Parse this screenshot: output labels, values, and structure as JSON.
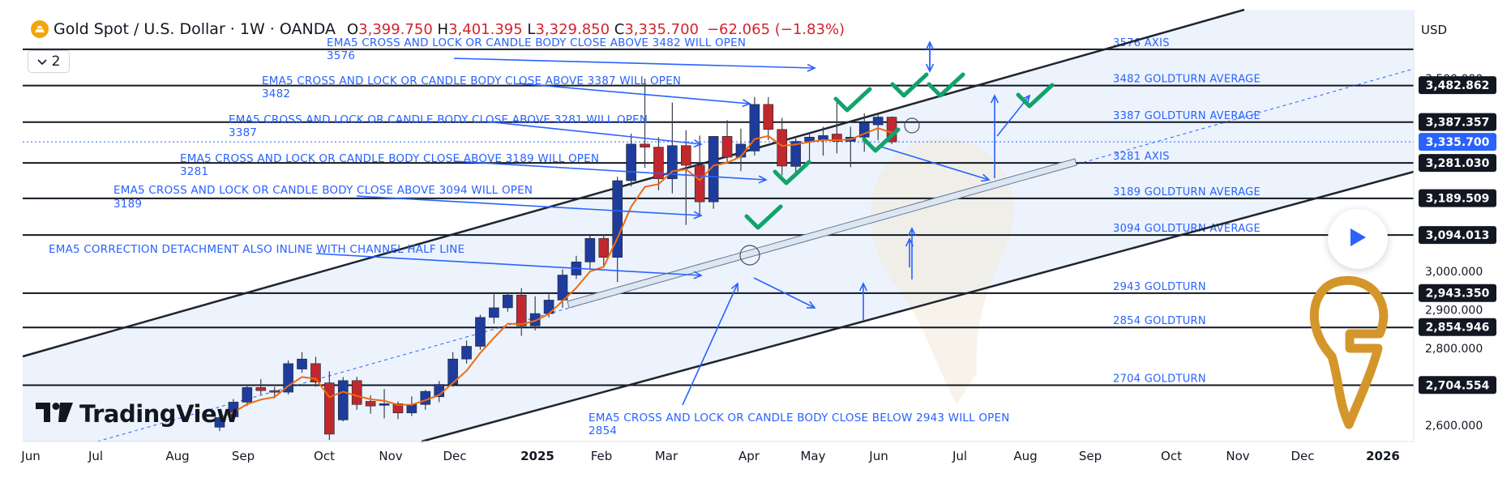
{
  "legend": {
    "symbol": "Gold Spot / U.S. Dollar · 1W · OANDA",
    "o_label": "O",
    "o_value": "3,399.750",
    "h_label": "H",
    "h_value": "3,401.395",
    "l_label": "L",
    "l_value": "3,329.850",
    "c_label": "C",
    "c_value": "3,335.700",
    "change": "−62.065 (−1.83%)"
  },
  "indicators_toggle": {
    "count": "2",
    "icon": "chevron-down-icon"
  },
  "currency": "USD",
  "brand": {
    "text": "TradingView",
    "icon": "tradingview-logo-icon"
  },
  "colors": {
    "up_candle": "#1f3c9c",
    "down_candle": "#c0282d",
    "ema": "#f06a10",
    "annotation_blue": "#2962ff",
    "checkmark": "#11a36b",
    "logo_gold": "#d4962b",
    "channel_fill": "#e9f1fb"
  },
  "chart_data": {
    "type": "candlestick",
    "title": "Gold Spot / U.S. Dollar · 1W · OANDA",
    "timeframe": "1W",
    "x_axis_labels": [
      "Jun",
      "Jul",
      "Aug",
      "Sep",
      "Oct",
      "Nov",
      "Dec",
      "2025",
      "Feb",
      "Mar",
      "Apr",
      "May",
      "Jun",
      "Jul",
      "Aug",
      "Sep",
      "Oct",
      "Nov",
      "Dec",
      "2026"
    ],
    "y_axis_ticks": [
      2600,
      2700,
      2800,
      2900,
      3000,
      3100,
      3200,
      3300,
      3400,
      3500
    ],
    "y_axis_tick_labels": [
      "2,600.000",
      "2,800.000",
      "2,900.000",
      "3,000.000",
      "3,500.000"
    ],
    "ylim": [
      2540,
      3660
    ],
    "price_labels": [
      {
        "value": 3482.862,
        "text": "3,482.862",
        "kind": "line"
      },
      {
        "value": 3387.357,
        "text": "3,387.357",
        "kind": "line"
      },
      {
        "value": 3335.7,
        "text": "3,335.700",
        "kind": "current"
      },
      {
        "value": 3281.03,
        "text": "3,281.030",
        "kind": "line"
      },
      {
        "value": 3189.509,
        "text": "3,189.509",
        "kind": "line"
      },
      {
        "value": 3094.013,
        "text": "3,094.013",
        "kind": "line"
      },
      {
        "value": 2943.35,
        "text": "2,943.350",
        "kind": "line"
      },
      {
        "value": 2854.946,
        "text": "2,854.946",
        "kind": "line"
      },
      {
        "value": 2704.554,
        "text": "2,704.554",
        "kind": "line"
      }
    ],
    "horizontal_levels": [
      {
        "value": 3576,
        "label": "3576 AXIS"
      },
      {
        "value": 3482,
        "label": "3482 GOLDTURN AVERAGE"
      },
      {
        "value": 3387,
        "label": "3387 GOLDTURN AVERAGE"
      },
      {
        "value": 3281,
        "label": "3281 AXIS"
      },
      {
        "value": 3189,
        "label": "3189 GOLDTURN AVERAGE"
      },
      {
        "value": 3094,
        "label": "3094 GOLDTURN AVERAGE"
      },
      {
        "value": 2943,
        "label": "2943 GOLDTURN"
      },
      {
        "value": 2854,
        "label": "2854 GOLDTURN"
      },
      {
        "value": 2704,
        "label": "2704 GOLDTURN"
      }
    ],
    "candles": [
      {
        "o": 2595,
        "h": 2625,
        "l": 2585,
        "c": 2620
      },
      {
        "o": 2622,
        "h": 2668,
        "l": 2612,
        "c": 2660
      },
      {
        "o": 2660,
        "h": 2704,
        "l": 2650,
        "c": 2698
      },
      {
        "o": 2698,
        "h": 2720,
        "l": 2680,
        "c": 2690
      },
      {
        "o": 2690,
        "h": 2700,
        "l": 2670,
        "c": 2686
      },
      {
        "o": 2686,
        "h": 2768,
        "l": 2680,
        "c": 2760
      },
      {
        "o": 2746,
        "h": 2790,
        "l": 2736,
        "c": 2772
      },
      {
        "o": 2760,
        "h": 2778,
        "l": 2700,
        "c": 2712
      },
      {
        "o": 2710,
        "h": 2740,
        "l": 2562,
        "c": 2577
      },
      {
        "o": 2614,
        "h": 2725,
        "l": 2610,
        "c": 2716
      },
      {
        "o": 2716,
        "h": 2726,
        "l": 2640,
        "c": 2654
      },
      {
        "o": 2662,
        "h": 2678,
        "l": 2630,
        "c": 2650
      },
      {
        "o": 2652,
        "h": 2694,
        "l": 2618,
        "c": 2656
      },
      {
        "o": 2656,
        "h": 2662,
        "l": 2616,
        "c": 2632
      },
      {
        "o": 2632,
        "h": 2675,
        "l": 2624,
        "c": 2654
      },
      {
        "o": 2654,
        "h": 2692,
        "l": 2640,
        "c": 2688
      },
      {
        "o": 2674,
        "h": 2715,
        "l": 2660,
        "c": 2706
      },
      {
        "o": 2706,
        "h": 2790,
        "l": 2700,
        "c": 2772
      },
      {
        "o": 2772,
        "h": 2820,
        "l": 2760,
        "c": 2805
      },
      {
        "o": 2805,
        "h": 2887,
        "l": 2796,
        "c": 2880
      },
      {
        "o": 2880,
        "h": 2940,
        "l": 2864,
        "c": 2905
      },
      {
        "o": 2905,
        "h": 2945,
        "l": 2895,
        "c": 2938
      },
      {
        "o": 2938,
        "h": 2956,
        "l": 2832,
        "c": 2858
      },
      {
        "o": 2858,
        "h": 2935,
        "l": 2846,
        "c": 2890
      },
      {
        "o": 2890,
        "h": 2940,
        "l": 2880,
        "c": 2925
      },
      {
        "o": 2925,
        "h": 3005,
        "l": 2905,
        "c": 2990
      },
      {
        "o": 2990,
        "h": 3040,
        "l": 2980,
        "c": 3024
      },
      {
        "o": 3024,
        "h": 3092,
        "l": 3004,
        "c": 3085
      },
      {
        "o": 3085,
        "h": 3095,
        "l": 3010,
        "c": 3036
      },
      {
        "o": 3036,
        "h": 3245,
        "l": 2972,
        "c": 3235
      },
      {
        "o": 3235,
        "h": 3357,
        "l": 3220,
        "c": 3330
      },
      {
        "o": 3330,
        "h": 3500,
        "l": 3268,
        "c": 3322
      },
      {
        "o": 3322,
        "h": 3348,
        "l": 3210,
        "c": 3240
      },
      {
        "o": 3240,
        "h": 3438,
        "l": 3202,
        "c": 3326
      },
      {
        "o": 3326,
        "h": 3366,
        "l": 3120,
        "c": 3275
      },
      {
        "o": 3275,
        "h": 3352,
        "l": 3145,
        "c": 3180
      },
      {
        "o": 3180,
        "h": 3350,
        "l": 3162,
        "c": 3350
      },
      {
        "o": 3350,
        "h": 3392,
        "l": 3282,
        "c": 3296
      },
      {
        "o": 3296,
        "h": 3370,
        "l": 3260,
        "c": 3330
      },
      {
        "o": 3312,
        "h": 3452,
        "l": 3300,
        "c": 3433
      },
      {
        "o": 3433,
        "h": 3452,
        "l": 3340,
        "c": 3368
      },
      {
        "o": 3368,
        "h": 3398,
        "l": 3249,
        "c": 3273
      },
      {
        "o": 3272,
        "h": 3345,
        "l": 3246,
        "c": 3337
      },
      {
        "o": 3337,
        "h": 3360,
        "l": 3282,
        "c": 3348
      },
      {
        "o": 3342,
        "h": 3375,
        "l": 3300,
        "c": 3352
      },
      {
        "o": 3356,
        "h": 3440,
        "l": 3306,
        "c": 3337
      },
      {
        "o": 3337,
        "h": 3375,
        "l": 3270,
        "c": 3348
      },
      {
        "o": 3348,
        "h": 3410,
        "l": 3310,
        "c": 3386
      },
      {
        "o": 3380,
        "h": 3409,
        "l": 3340,
        "c": 3400
      },
      {
        "o": 3400,
        "h": 3401.395,
        "l": 3329.85,
        "c": 3335.7
      }
    ],
    "ema_label": "EMA5",
    "annotations": [
      "EMA5 CROSS AND LOCK OR CANDLE BODY CLOSE ABOVE 3482 WILL OPEN 3576",
      "EMA5 CROSS AND LOCK OR CANDLE BODY CLOSE ABOVE 3387 WILL OPEN 3482",
      "EMA5 CROSS AND LOCK OR CANDLE BODY CLOSE ABOVE 3281 WILL OPEN 3387",
      "EMA5 CROSS AND LOCK OR CANDLE BODY CLOSE ABOVE 3189 WILL OPEN 3281",
      "EMA5 CROSS AND LOCK OR CANDLE BODY CLOSE ABOVE 3094 WILL OPEN 3189",
      "EMA5 CORRECTION DETACHMENT ALSO INLINE WITH CHANNEL HALF LINE",
      "EMA5 CROSS AND LOCK OR CANDLE BODY CLOSE BELOW 2943 WILL OPEN 2854"
    ]
  }
}
